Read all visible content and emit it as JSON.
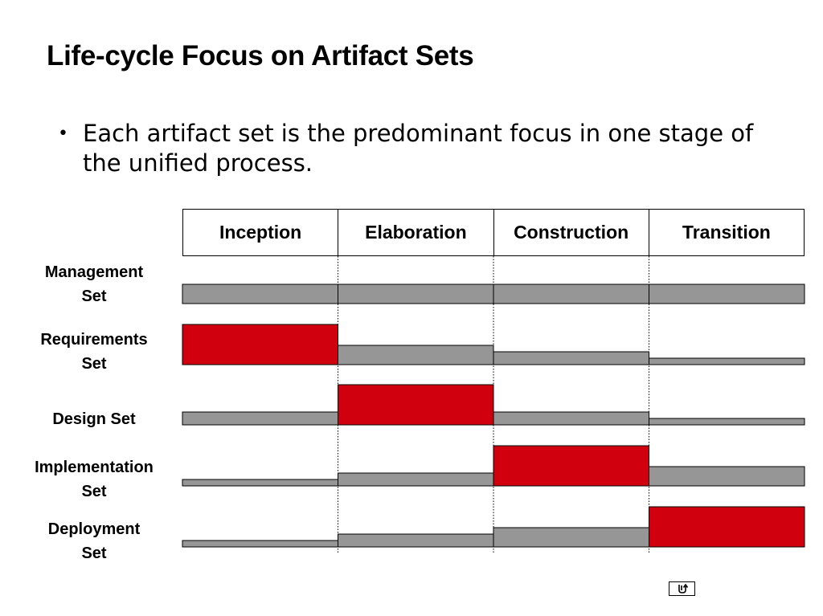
{
  "title": "Life-cycle Focus on Artifact Sets",
  "bullet": {
    "marker": "•",
    "text": "Each artifact set is the predominant focus in one stage of the unified process."
  },
  "phases": [
    "Inception",
    "Elaboration",
    "Construction",
    "Transition"
  ],
  "artifact_sets": [
    {
      "label_lines": [
        "Management",
        "Set"
      ],
      "levels": [
        0.48,
        0.48,
        0.48,
        0.48
      ],
      "focus_phase": null
    },
    {
      "label_lines": [
        "Requirements",
        "Set"
      ],
      "levels": [
        1.0,
        0.48,
        0.32,
        0.16
      ],
      "focus_phase": 0
    },
    {
      "label_lines": [
        "Design Set"
      ],
      "levels": [
        0.32,
        1.0,
        0.32,
        0.16
      ],
      "focus_phase": 1
    },
    {
      "label_lines": [
        "Implementation",
        "Set"
      ],
      "levels": [
        0.16,
        0.32,
        1.0,
        0.48
      ],
      "focus_phase": 2
    },
    {
      "label_lines": [
        "Deployment",
        "Set"
      ],
      "levels": [
        0.16,
        0.32,
        0.48,
        1.0
      ],
      "focus_phase": 3
    }
  ],
  "colors": {
    "focus": "#d0000f",
    "secondary": "#969696",
    "outline": "#000000"
  },
  "return_button": {
    "icon": "return-arrow-icon"
  }
}
